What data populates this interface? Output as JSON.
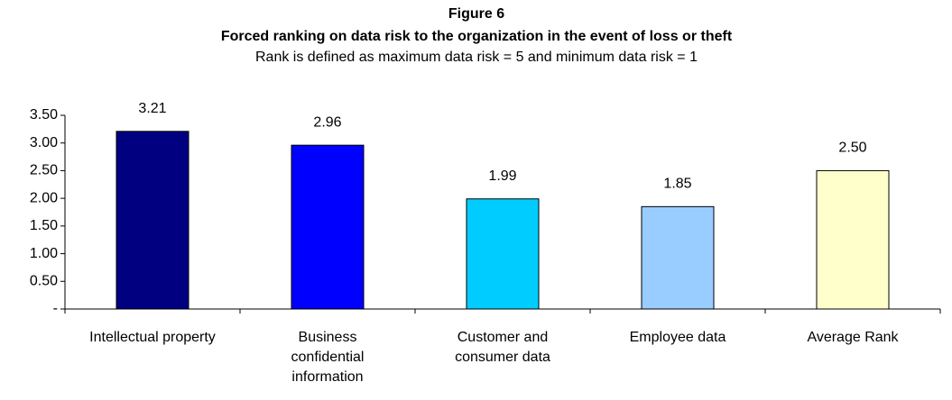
{
  "chart_data": {
    "type": "bar",
    "title": "Figure 6",
    "subtitle": "Forced ranking on data risk to the organization in the event of  loss or theft",
    "note": "Rank is defined as maximum data risk = 5 and minimum data risk = 1",
    "categories": [
      "Intellectual property",
      "Business confidential information",
      "Customer and consumer data",
      "Employee data",
      "Average Rank"
    ],
    "values": [
      3.21,
      2.96,
      1.99,
      1.85,
      2.5
    ],
    "value_labels": [
      "3.21",
      "2.96",
      "1.99",
      "1.85",
      "2.50"
    ],
    "colors": [
      "#000080",
      "#0000ff",
      "#00ccff",
      "#99ccff",
      "#ffffcc"
    ],
    "ylim": [
      0,
      3.5
    ],
    "yticks": [
      {
        "value": 0,
        "label": "-"
      },
      {
        "value": 0.5,
        "label": "0.50"
      },
      {
        "value": 1,
        "label": "1.00"
      },
      {
        "value": 1.5,
        "label": "1.50"
      },
      {
        "value": 2,
        "label": "2.00"
      },
      {
        "value": 2.5,
        "label": "2.50"
      },
      {
        "value": 3,
        "label": "3.00"
      },
      {
        "value": 3.5,
        "label": "3.50"
      }
    ],
    "grid": false
  }
}
